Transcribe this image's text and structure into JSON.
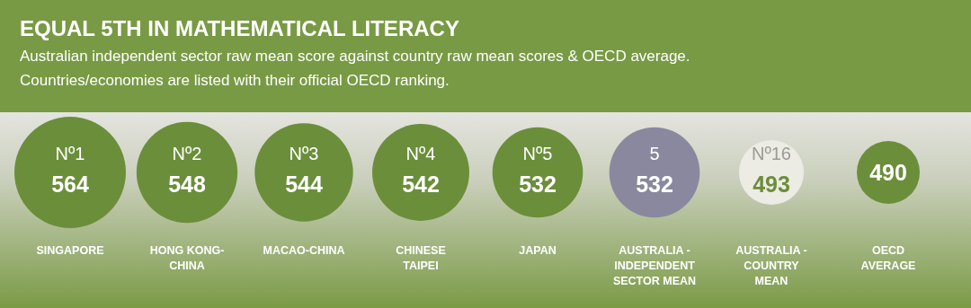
{
  "chart_data": {
    "type": "other",
    "title": "EQUAL 5TH IN MATHEMATICAL LITERACY",
    "subtitle": "Australian independent sector raw mean score against country raw mean scores & OECD average.\nCountries/economies are listed with their official OECD ranking.",
    "categories": [
      "SINGAPORE",
      "HONG KONG-CHINA",
      "MACAO-CHINA",
      "CHINESE TAIPEI",
      "JAPAN",
      "AUSTRALIA - INDEPENDENT SECTOR MEAN",
      "AUSTRALIA - COUNTRY MEAN",
      "OECD AVERAGE"
    ],
    "values": [
      564,
      548,
      544,
      542,
      532,
      532,
      493,
      490
    ],
    "colors": [
      "#6b8e3a",
      "#6b8e3a",
      "#6b8e3a",
      "#6b8e3a",
      "#6b8e3a",
      "#8a889e",
      "#ecebe4",
      "#6b8e3a"
    ],
    "data_labels": true,
    "annotations": [
      {
        "text": "Nº1",
        "x": "SINGAPORE"
      },
      {
        "text": "Nº2",
        "x": "HONG KONG-CHINA"
      },
      {
        "text": "Nº3",
        "x": "MACAO-CHINA"
      },
      {
        "text": "Nº4",
        "x": "CHINESE TAIPEI"
      },
      {
        "text": "Nº5",
        "x": "JAPAN"
      },
      {
        "text": "5",
        "x": "AUSTRALIA - INDEPENDENT SECTOR MEAN"
      },
      {
        "text": "Nº16",
        "x": "AUSTRALIA - COUNTRY MEAN"
      }
    ]
  }
}
